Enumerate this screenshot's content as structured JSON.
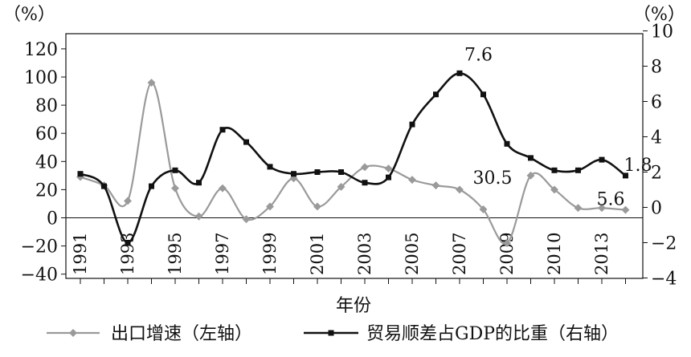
{
  "chart_data": {
    "type": "line",
    "left_unit": "（%）",
    "right_unit": "（%）",
    "xlabel": "年份",
    "x_tick_labels": [
      "1991",
      "1993",
      "1995",
      "1997",
      "1999",
      "2001",
      "2003",
      "2005",
      "2007",
      "2009",
      "2010",
      "2013"
    ],
    "left_axis": {
      "min": -40,
      "max": 120,
      "ticks": [
        -40,
        -20,
        0,
        20,
        40,
        60,
        80,
        100,
        120
      ]
    },
    "right_axis": {
      "min": -4,
      "max": 10,
      "ticks": [
        -4,
        -2,
        0,
        2,
        4,
        6,
        8,
        10
      ]
    },
    "grid": false,
    "legend_position": "bottom",
    "series": [
      {
        "name": "出口增速（左轴）",
        "axis": "left",
        "color": "#9a9a9a",
        "marker": "diamond",
        "x": [
          1991,
          1992,
          1993,
          1994,
          1995,
          1996,
          1997,
          1998,
          1999,
          2000,
          2001,
          2002,
          2003,
          2004,
          2005,
          2006,
          2007,
          2008,
          2009,
          2010,
          2011,
          2012,
          2013,
          2014
        ],
        "values": [
          29,
          23,
          12,
          96,
          21,
          1,
          21,
          -1,
          8,
          28,
          8,
          22,
          36,
          35,
          27,
          23,
          20,
          6,
          -18,
          30,
          20,
          7,
          7,
          5.6
        ]
      },
      {
        "name": "贸易顺差占GDP的比重（右轴）",
        "axis": "right",
        "color": "#111111",
        "marker": "square",
        "x": [
          1991,
          1992,
          1993,
          1994,
          1995,
          1996,
          1997,
          1998,
          1999,
          2000,
          2001,
          2002,
          2003,
          2004,
          2005,
          2006,
          2007,
          2008,
          2009,
          2010,
          2011,
          2012,
          2013,
          2014
        ],
        "values": [
          1.9,
          1.2,
          -2.0,
          1.2,
          2.1,
          1.4,
          4.4,
          3.7,
          2.3,
          1.9,
          2.0,
          2.0,
          1.4,
          1.7,
          4.7,
          6.4,
          7.6,
          6.4,
          3.6,
          2.8,
          2.1,
          2.1,
          2.7,
          1.8
        ]
      }
    ],
    "annotations": [
      {
        "text": "7.6",
        "series": 1,
        "point": 16
      },
      {
        "text": "1.8",
        "series": 1,
        "point": 23
      },
      {
        "text": "30.5",
        "series": 0,
        "point": 19
      },
      {
        "text": "5.6",
        "series": 0,
        "point": 23
      }
    ]
  }
}
